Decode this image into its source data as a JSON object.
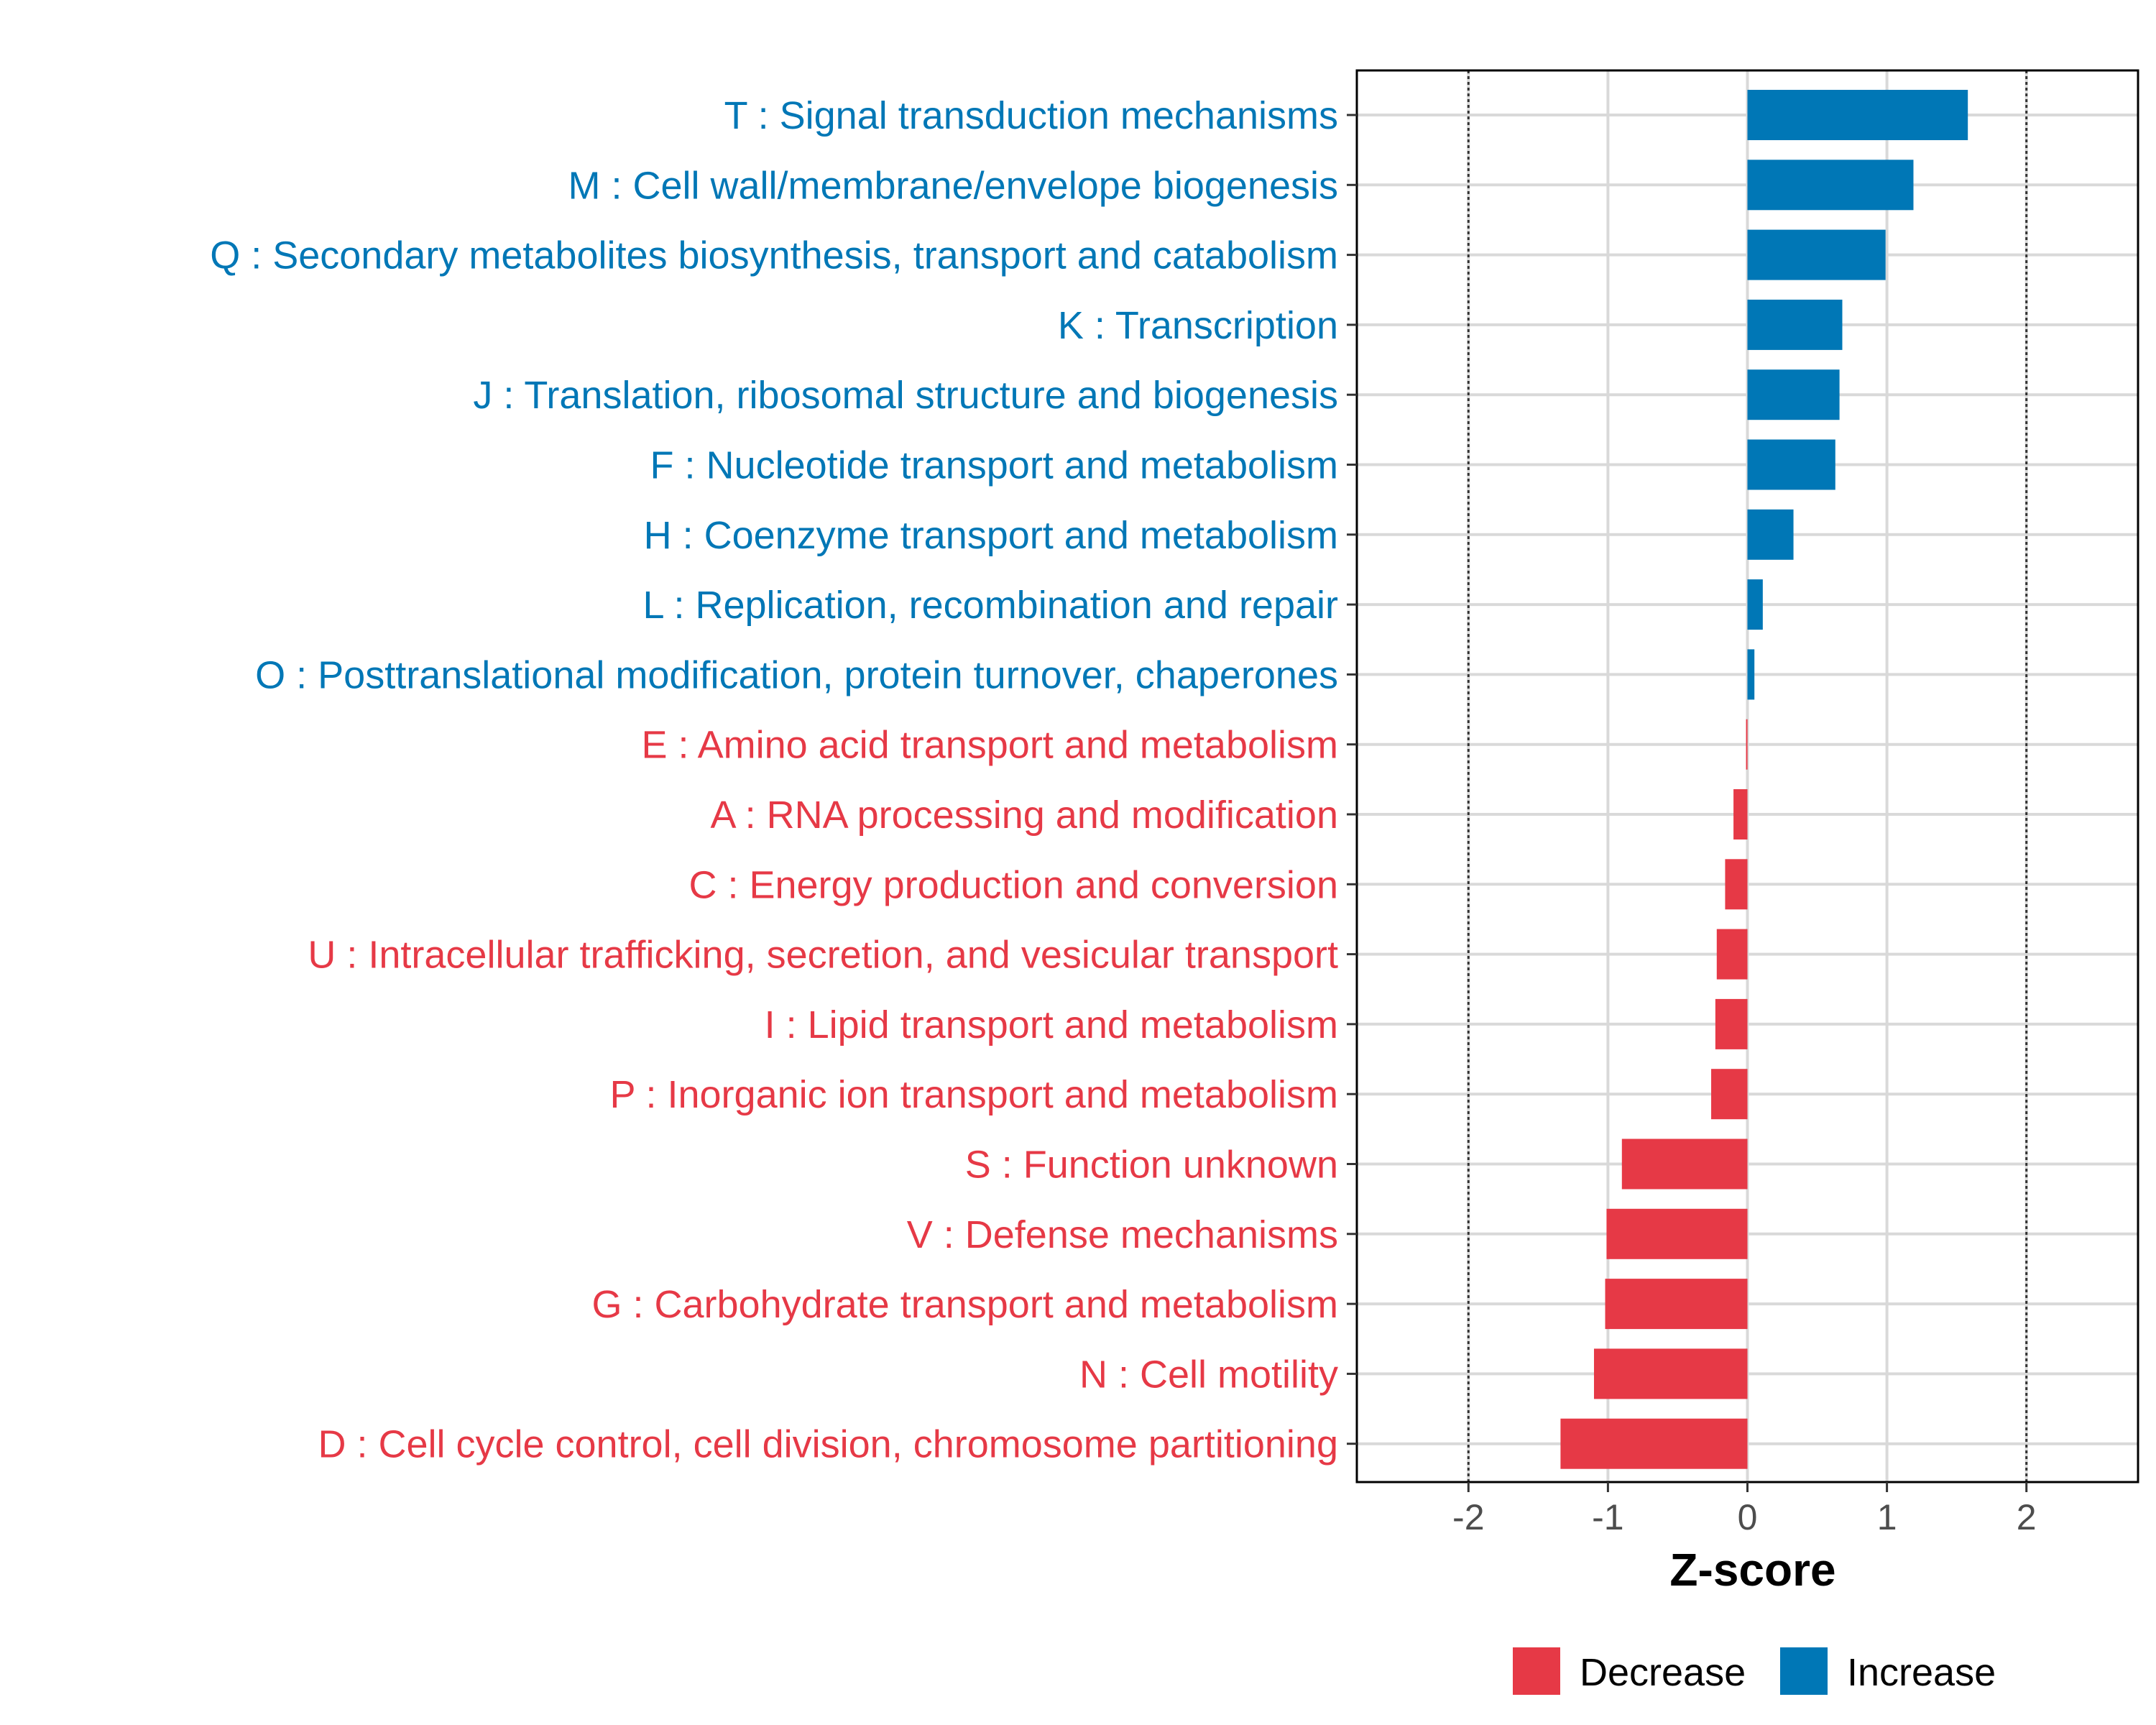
{
  "chart_data": {
    "type": "bar",
    "orientation": "horizontal",
    "xlabel": "Z-score",
    "xlim": [
      -2.8,
      2.8
    ],
    "xticks": [
      -2,
      -1,
      0,
      1,
      2
    ],
    "xtick_labels": [
      "-2",
      "-1",
      "0",
      "1",
      "2"
    ],
    "reference_lines": [
      -2,
      2
    ],
    "grid": true,
    "legend_position": "bottom",
    "colors": {
      "Decrease": "#e63946",
      "Increase": "#0077b6"
    },
    "legend": [
      {
        "label": "Decrease",
        "color": "#e63946"
      },
      {
        "label": "Increase",
        "color": "#0077b6"
      }
    ],
    "categories": [
      "T : Signal transduction mechanisms",
      "M : Cell wall/membrane/envelope biogenesis",
      "Q : Secondary metabolites biosynthesis, transport and catabolism",
      "K : Transcription",
      "J : Translation, ribosomal structure and biogenesis",
      "F : Nucleotide transport and metabolism",
      "H : Coenzyme transport and metabolism",
      "L : Replication, recombination and repair",
      "O : Posttranslational modification, protein turnover, chaperones",
      "E : Amino acid transport and metabolism",
      "A : RNA processing and modification",
      "C : Energy production and conversion",
      "U : Intracellular trafficking, secretion, and vesicular transport",
      "I : Lipid transport and metabolism",
      "P : Inorganic ion transport and metabolism",
      "S : Function unknown",
      "V : Defense mechanisms",
      "G : Carbohydrate transport and metabolism",
      "N : Cell motility",
      "D : Cell cycle control, cell division, chromosome partitioning"
    ],
    "values": [
      1.58,
      1.19,
      0.99,
      0.68,
      0.66,
      0.63,
      0.33,
      0.11,
      0.05,
      -0.01,
      -0.1,
      -0.16,
      -0.22,
      -0.23,
      -0.26,
      -0.9,
      -1.01,
      -1.02,
      -1.1,
      -1.34
    ],
    "groups": [
      "Increase",
      "Increase",
      "Increase",
      "Increase",
      "Increase",
      "Increase",
      "Increase",
      "Increase",
      "Increase",
      "Decrease",
      "Decrease",
      "Decrease",
      "Decrease",
      "Decrease",
      "Decrease",
      "Decrease",
      "Decrease",
      "Decrease",
      "Decrease",
      "Decrease"
    ]
  }
}
